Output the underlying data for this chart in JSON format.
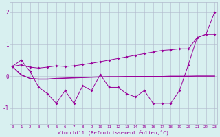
{
  "xlabel": "Windchill (Refroidissement éolien,°C)",
  "x": [
    0,
    1,
    2,
    3,
    4,
    5,
    6,
    7,
    8,
    9,
    10,
    11,
    12,
    13,
    14,
    15,
    16,
    17,
    18,
    19,
    20,
    21,
    22,
    23
  ],
  "line_zigzag": [
    0.3,
    0.5,
    0.15,
    -0.35,
    -0.55,
    -0.85,
    -0.45,
    -0.85,
    -0.3,
    -0.45,
    0.05,
    -0.35,
    -0.35,
    -0.55,
    -0.65,
    -0.45,
    -0.85,
    -0.85,
    -0.85,
    -0.45,
    0.35,
    1.2,
    1.3,
    2.0
  ],
  "line_rise": [
    0.3,
    0.35,
    0.28,
    0.25,
    0.28,
    0.32,
    0.3,
    0.32,
    0.36,
    0.4,
    0.45,
    0.5,
    0.55,
    0.6,
    0.65,
    0.7,
    0.75,
    0.8,
    0.82,
    0.85,
    0.85,
    1.2,
    1.3,
    1.3
  ],
  "line_flat1": [
    0.3,
    0.05,
    -0.08,
    -0.1,
    -0.1,
    -0.08,
    -0.07,
    -0.06,
    -0.05,
    -0.04,
    -0.03,
    -0.02,
    -0.02,
    -0.02,
    -0.02,
    -0.01,
    -0.01,
    -0.01,
    -0.01,
    -0.01,
    -0.01,
    -0.0,
    0.0,
    0.0
  ],
  "line_flat2": [
    0.3,
    0.03,
    -0.07,
    -0.09,
    -0.09,
    -0.07,
    -0.06,
    -0.05,
    -0.04,
    -0.03,
    -0.02,
    -0.02,
    -0.02,
    -0.01,
    -0.01,
    -0.01,
    -0.01,
    -0.01,
    -0.0,
    -0.0,
    -0.0,
    -0.0,
    0.0,
    0.0
  ],
  "line_color": "#990099",
  "bg_color": "#d8f0f0",
  "grid_color": "#b0b8cc",
  "ylim": [
    -1.5,
    2.3
  ],
  "yticks": [
    -1,
    0,
    1,
    2
  ],
  "xlim": [
    -0.3,
    23.3
  ],
  "figsize": [
    3.2,
    2.0
  ],
  "dpi": 100
}
